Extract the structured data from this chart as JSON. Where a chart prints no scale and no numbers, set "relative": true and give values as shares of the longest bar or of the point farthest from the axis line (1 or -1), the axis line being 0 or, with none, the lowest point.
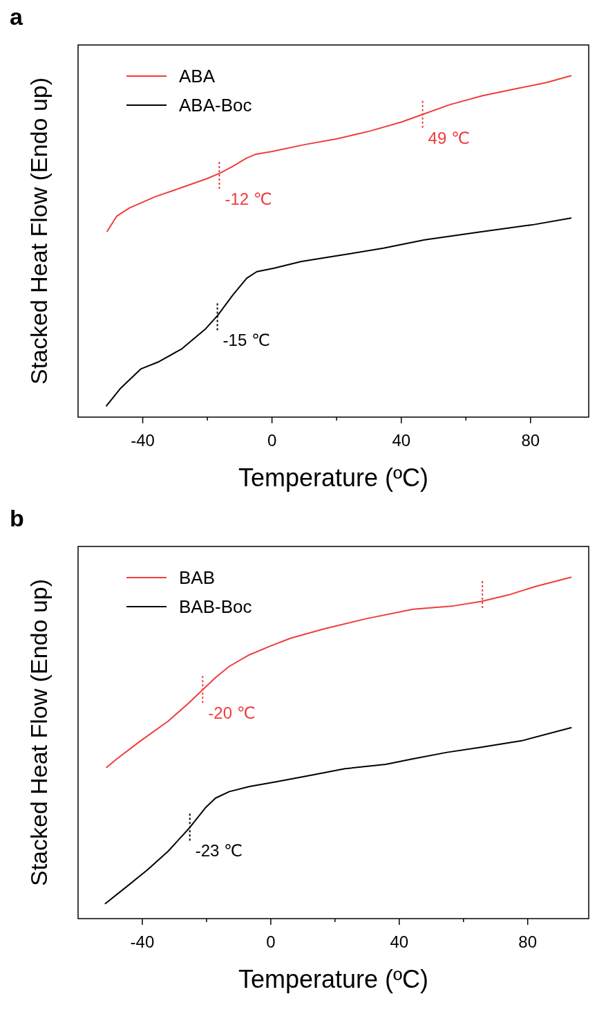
{
  "chart_data": [
    {
      "type": "line",
      "title": "a",
      "xlabel": "Temperature (ºC)",
      "ylabel": "Stacked Heat Flow (Endo up)",
      "relative": true,
      "legend": "top left",
      "xlim": [
        -60,
        98
      ],
      "xticks": [
        -40,
        {
          "value": -20,
          "label": null
        },
        0,
        {
          "value": 20,
          "label": null
        },
        40,
        {
          "value": 60,
          "label": null
        },
        80
      ],
      "series": [
        {
          "name": "ABA",
          "color": "#f03c3c",
          "x": [
            -51,
            -48,
            -44,
            -36,
            -28,
            -20,
            -16,
            -12,
            -8,
            -5,
            0,
            10,
            20,
            30,
            40,
            47,
            55,
            65,
            75,
            85,
            92.5
          ],
          "values": [
            0.544,
            0.589,
            0.613,
            0.646,
            0.672,
            0.699,
            0.715,
            0.735,
            0.758,
            0.77,
            0.778,
            0.798,
            0.815,
            0.837,
            0.864,
            0.888,
            0.915,
            0.941,
            0.961,
            0.98,
            1.0
          ]
        },
        {
          "name": "ABA-Boc",
          "color": "#000000",
          "x": [
            -51.2,
            -47,
            -40.6,
            -35.3,
            -27.9,
            -20.5,
            -16.7,
            -12.1,
            -7.8,
            -4.7,
            0.6,
            9.1,
            21.8,
            34.5,
            47.2,
            64.1,
            81.1,
            92.5
          ],
          "values": [
            0.033,
            0.083,
            0.141,
            0.161,
            0.2,
            0.259,
            0.299,
            0.358,
            0.407,
            0.426,
            0.436,
            0.456,
            0.475,
            0.495,
            0.519,
            0.542,
            0.564,
            0.583
          ]
        }
      ],
      "annotations": [
        {
          "text": "-12 ℃",
          "x": -16.3,
          "y": 0.707
        },
        {
          "text": "49 ℃",
          "x": 46.6,
          "y": 0.886
        },
        {
          "text": "-15 ℃",
          "x": -16.9,
          "y": 0.293
        }
      ]
    },
    {
      "type": "line",
      "title": "b",
      "xlabel": "Temperature (ºC)",
      "ylabel": "Stacked Heat Flow (Endo up)",
      "relative": true,
      "legend": "top left",
      "xlim": [
        -60,
        99
      ],
      "xticks": [
        -40,
        {
          "value": -20,
          "label": null
        },
        0,
        {
          "value": 20,
          "label": null
        },
        40,
        {
          "value": 60,
          "label": null
        },
        80
      ],
      "series": [
        {
          "name": "BAB",
          "color": "#f03c3c",
          "x": [
            -51.1,
            -47.9,
            -40.5,
            -32,
            -25.7,
            -21,
            -17.2,
            -12.9,
            -6.6,
            -0.2,
            6.1,
            16.7,
            29.5,
            44.3,
            57,
            65.5,
            74,
            82.5,
            93.5
          ],
          "values": [
            0.443,
            0.468,
            0.521,
            0.578,
            0.63,
            0.672,
            0.706,
            0.739,
            0.773,
            0.798,
            0.821,
            0.849,
            0.878,
            0.906,
            0.916,
            0.929,
            0.948,
            0.973,
            1.0
          ]
        },
        {
          "name": "BAB-Boc",
          "color": "#000000",
          "x": [
            -51.5,
            -44.7,
            -38.4,
            -32,
            -25.2,
            -20.4,
            -17.2,
            -12.9,
            -6.6,
            1.9,
            12.5,
            23.1,
            35.8,
            44.3,
            54.9,
            65.5,
            78.2,
            93.5
          ],
          "values": [
            0.044,
            0.095,
            0.143,
            0.197,
            0.267,
            0.324,
            0.353,
            0.372,
            0.387,
            0.401,
            0.42,
            0.439,
            0.452,
            0.468,
            0.487,
            0.502,
            0.521,
            0.559
          ]
        }
      ],
      "ref_lines": [
        {
          "axis": "x",
          "value": 65.9,
          "color": "#f03c3c",
          "line_style": "dotted"
        }
      ],
      "annotations": [
        {
          "text": "-20 ℃",
          "x": -21.2,
          "y": 0.67
        },
        {
          "text": "-23 ℃",
          "x": -25.2,
          "y": 0.267
        }
      ]
    }
  ]
}
